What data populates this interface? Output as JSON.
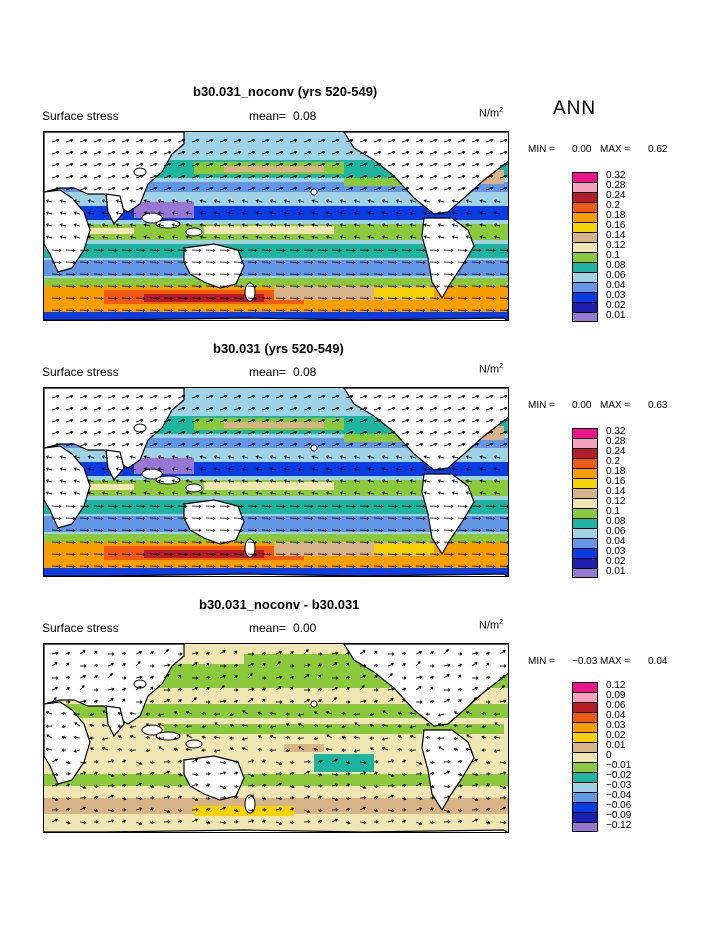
{
  "season": "ANN",
  "panels": [
    {
      "title": "b30.031_noconv (yrs 520-549)",
      "field": "Surface stress",
      "mean_label": "mean=",
      "mean_value": "0.08",
      "units_label": "N/m",
      "units_exp": "2",
      "min_label": "MIN =",
      "min_value": "0.00",
      "max_label": "MAX =",
      "max_value": "0.62",
      "colorbar": {
        "labels": [
          "0.32",
          "0.28",
          "0.24",
          "0.2",
          "0.18",
          "0.16",
          "0.14",
          "0.12",
          "0.1",
          "0.08",
          "0.06",
          "0.04",
          "0.03",
          "0.02",
          "0.01"
        ],
        "colors": [
          "#f0148c",
          "#f5a0be",
          "#b41e28",
          "#f05a14",
          "#f5a000",
          "#f5d200",
          "#d7b487",
          "#f0e6b4",
          "#8cc83c",
          "#1eb4a0",
          "#a0d2e6",
          "#6496e6",
          "#0a3ce6",
          "#1e1eb4",
          "#9678d2"
        ]
      }
    },
    {
      "title": "b30.031 (yrs 520-549)",
      "field": "Surface stress",
      "mean_label": "mean=",
      "mean_value": "0.08",
      "units_label": "N/m",
      "units_exp": "2",
      "min_label": "MIN =",
      "min_value": "0.00",
      "max_label": "MAX =",
      "max_value": "0.63",
      "colorbar": {
        "labels": [
          "0.32",
          "0.28",
          "0.24",
          "0.2",
          "0.18",
          "0.16",
          "0.14",
          "0.12",
          "0.1",
          "0.08",
          "0.06",
          "0.04",
          "0.03",
          "0.02",
          "0.01"
        ],
        "colors": [
          "#f0148c",
          "#f5a0be",
          "#b41e28",
          "#f05a14",
          "#f5a000",
          "#f5d200",
          "#d7b487",
          "#f0e6b4",
          "#8cc83c",
          "#1eb4a0",
          "#a0d2e6",
          "#6496e6",
          "#0a3ce6",
          "#1e1eb4",
          "#9678d2"
        ]
      }
    },
    {
      "title": "b30.031_noconv - b30.031",
      "field": "Surface stress",
      "mean_label": "mean=",
      "mean_value": "0.00",
      "units_label": "N/m",
      "units_exp": "2",
      "min_label": "MIN =",
      "min_value": "−0.03",
      "max_label": "MAX =",
      "max_value": "0.04",
      "colorbar": {
        "labels": [
          "0.12",
          "0.09",
          "0.06",
          "0.04",
          "0.03",
          "0.02",
          "0.01",
          "0",
          "−0.01",
          "−0.02",
          "−0.03",
          "−0.04",
          "−0.06",
          "−0.09",
          "−0.12"
        ],
        "colors": [
          "#f0148c",
          "#f5a0be",
          "#b41e28",
          "#f05a14",
          "#f5a000",
          "#f5d200",
          "#d7b487",
          "#f0e6b4",
          "#8cc83c",
          "#1eb4a0",
          "#a0d2e6",
          "#6496e6",
          "#0a3ce6",
          "#1e1eb4",
          "#9678d2"
        ]
      }
    }
  ],
  "chart_data": {
    "type": "heatmap",
    "description_fields": [
      "Surface stress"
    ],
    "panels": [
      {
        "title": "b30.031_noconv (yrs 520-549)",
        "mean": 0.08,
        "min": 0.0,
        "max": 0.62,
        "units": "N/m2",
        "contour_levels": [
          0.01,
          0.02,
          0.03,
          0.04,
          0.06,
          0.08,
          0.1,
          0.12,
          0.14,
          0.16,
          0.18,
          0.2,
          0.24,
          0.28,
          0.32
        ]
      },
      {
        "title": "b30.031 (yrs 520-549)",
        "mean": 0.08,
        "min": 0.0,
        "max": 0.63,
        "units": "N/m2",
        "contour_levels": [
          0.01,
          0.02,
          0.03,
          0.04,
          0.06,
          0.08,
          0.1,
          0.12,
          0.14,
          0.16,
          0.18,
          0.2,
          0.24,
          0.28,
          0.32
        ]
      },
      {
        "title": "b30.031_noconv - b30.031",
        "mean": 0.0,
        "min": -0.03,
        "max": 0.04,
        "units": "N/m2",
        "contour_levels": [
          -0.12,
          -0.09,
          -0.06,
          -0.04,
          -0.03,
          -0.02,
          -0.01,
          0,
          0.01,
          0.02,
          0.03,
          0.04,
          0.06,
          0.09,
          0.12
        ]
      }
    ]
  }
}
